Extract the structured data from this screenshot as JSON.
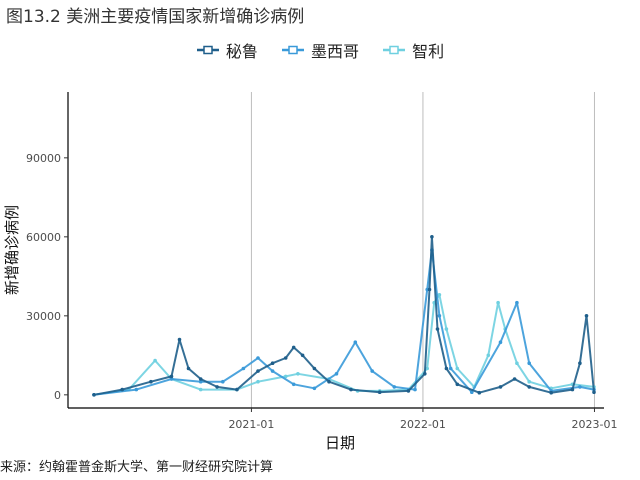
{
  "title": "图13.2 美洲主要疫情国家新增确诊病例",
  "source": "来源：约翰霍普金斯大学、第一财经研究院计算",
  "chart_data": {
    "type": "line",
    "xlabel": "日期",
    "ylabel": "新增确诊病例",
    "x_range": [
      "2020-02-01",
      "2022-12-31"
    ],
    "ylim": [
      -5000,
      115000
    ],
    "y_ticks": [
      0,
      30000,
      60000,
      90000
    ],
    "y_tick_labels": [
      "0",
      "30000",
      "60000",
      "90000"
    ],
    "x_ticks": [
      "2021-01-01",
      "2022-01-01",
      "2023-01-01"
    ],
    "x_tick_labels": [
      "2021-01",
      "2022-01",
      "2023-01"
    ],
    "grid": "vertical-major",
    "legend_position": "top",
    "series": [
      {
        "name": "秘鲁",
        "color": "#1f5f8b",
        "x": [
          "2020-02-01",
          "2020-04-01",
          "2020-06-01",
          "2020-07-15",
          "2020-08-01",
          "2020-08-20",
          "2020-09-15",
          "2020-10-20",
          "2020-12-01",
          "2021-01-15",
          "2021-02-15",
          "2021-03-15",
          "2021-04-01",
          "2021-04-20",
          "2021-05-15",
          "2021-06-15",
          "2021-08-01",
          "2021-10-01",
          "2021-12-01",
          "2022-01-05",
          "2022-01-15",
          "2022-01-20",
          "2022-02-01",
          "2022-02-20",
          "2022-03-15",
          "2022-05-01",
          "2022-06-15",
          "2022-07-15",
          "2022-08-15",
          "2022-10-01",
          "2022-11-15",
          "2022-12-01",
          "2022-12-15",
          "2022-12-31"
        ],
        "values": [
          0,
          2000,
          5000,
          7000,
          21000,
          10000,
          6000,
          3000,
          2000,
          9000,
          12000,
          14000,
          18000,
          15000,
          10000,
          5000,
          2000,
          1000,
          1500,
          8000,
          40000,
          60000,
          25000,
          10000,
          4000,
          800,
          3000,
          6000,
          3000,
          800,
          2000,
          12000,
          30000,
          1000
        ]
      },
      {
        "name": "墨西哥",
        "color": "#3a9ad9",
        "x": [
          "2020-02-01",
          "2020-05-01",
          "2020-07-15",
          "2020-09-15",
          "2020-11-01",
          "2020-12-15",
          "2021-01-15",
          "2021-02-15",
          "2021-04-01",
          "2021-05-15",
          "2021-07-01",
          "2021-08-10",
          "2021-09-15",
          "2021-11-01",
          "2021-12-15",
          "2022-01-10",
          "2022-01-20",
          "2022-02-05",
          "2022-03-01",
          "2022-04-15",
          "2022-06-15",
          "2022-07-20",
          "2022-08-15",
          "2022-10-01",
          "2022-12-01",
          "2022-12-31"
        ],
        "values": [
          0,
          2000,
          6000,
          5000,
          5000,
          10000,
          14000,
          9000,
          4000,
          2500,
          8000,
          20000,
          9000,
          3000,
          2000,
          40000,
          55000,
          30000,
          10000,
          1000,
          20000,
          35000,
          12000,
          1500,
          3000,
          2000
        ]
      },
      {
        "name": "智利",
        "color": "#6fd0e0",
        "x": [
          "2020-02-01",
          "2020-04-15",
          "2020-06-10",
          "2020-07-15",
          "2020-09-15",
          "2020-12-01",
          "2021-01-15",
          "2021-03-15",
          "2021-04-10",
          "2021-06-15",
          "2021-08-15",
          "2021-10-01",
          "2021-12-01",
          "2022-01-10",
          "2022-01-25",
          "2022-02-05",
          "2022-02-20",
          "2022-03-15",
          "2022-04-20",
          "2022-05-20",
          "2022-06-10",
          "2022-06-25",
          "2022-07-20",
          "2022-08-15",
          "2022-10-01",
          "2022-11-15",
          "2022-12-31"
        ],
        "values": [
          0,
          2000,
          13000,
          6000,
          2000,
          2000,
          5000,
          7000,
          8000,
          6000,
          1500,
          1500,
          2000,
          10000,
          35000,
          38000,
          25000,
          10000,
          3000,
          15000,
          35000,
          25000,
          12000,
          5000,
          2500,
          4000,
          3000
        ]
      }
    ]
  }
}
